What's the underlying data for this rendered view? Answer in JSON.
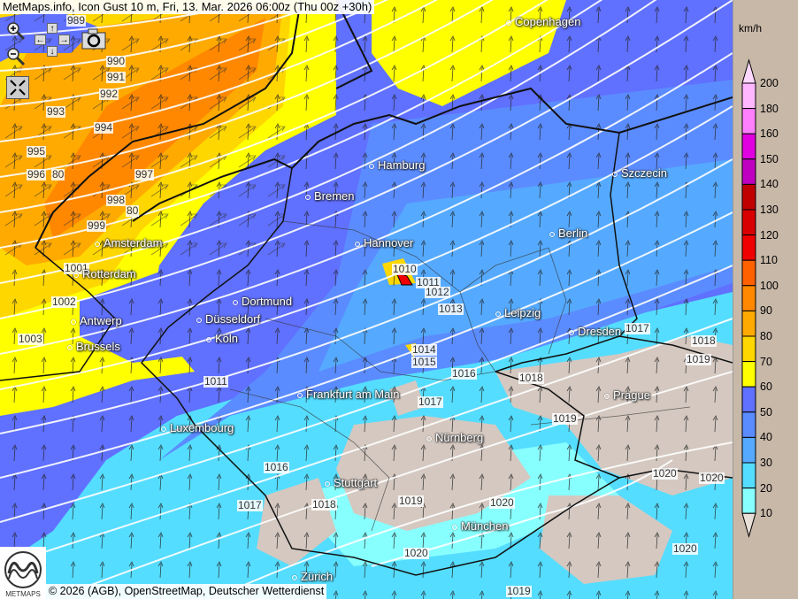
{
  "title": "MetMaps.info, Icon Gust 10 m, Fri, 13. Mar. 2026 06:00z (Thu 00z +30h)",
  "footer": {
    "copyright": "© 2026 (AGB), OpenStreetMap, Deutscher Wetterdienst",
    "logo_text": "METMAPS"
  },
  "controls": {
    "zoom_in": "zoom-in-icon",
    "zoom_out": "zoom-out-icon",
    "pan": [
      "arrow-up-icon",
      "arrow-left-icon",
      "arrow-right-icon",
      "arrow-down-icon"
    ],
    "screenshot": "camera-icon",
    "fullscreen": "fullscreen-icon"
  },
  "cities": [
    "Copenhagen",
    "Hamburg",
    "Szczecin",
    "Bremen",
    "Amsterdam",
    "Hannover",
    "Berlin",
    "Rotterdam",
    "Dortmund",
    "Düsseldorf",
    "Leipzig",
    "Antwerp",
    "Köln",
    "Brussels",
    "Dresden",
    "Frankfurt am Main",
    "Prague",
    "Luxembourg",
    "Nürnberg",
    "Stuttgart",
    "München",
    "Zürich"
  ],
  "isobar_labels": [
    "989",
    "990",
    "991",
    "992",
    "993",
    "994",
    "995",
    "996",
    "80",
    "997",
    "998",
    "80",
    "999",
    "1001",
    "1002",
    "1003",
    "1010",
    "1011",
    "1012",
    "1013",
    "1014",
    "1015",
    "1016",
    "1017",
    "1011",
    "1016",
    "1017",
    "1018",
    "1019",
    "1020",
    "1020",
    "1018",
    "1018",
    "1019",
    "1017",
    "1019",
    "1020",
    "1020",
    "1020",
    "1019"
  ],
  "legend": {
    "unit": "km/h",
    "levels": [
      "200",
      "180",
      "160",
      "150",
      "140",
      "130",
      "120",
      "110",
      "100",
      "90",
      "80",
      "70",
      "60",
      "50",
      "40",
      "30",
      "20",
      "10"
    ],
    "colors": [
      "#ffb8ff",
      "#ff80ff",
      "#e000e0",
      "#c000c0",
      "#c00000",
      "#d80000",
      "#f00000",
      "#ff6000",
      "#ff8800",
      "#ffaa00",
      "#ffd700",
      "#ffff00",
      "#6070ff",
      "#5b8cff",
      "#55aaff",
      "#55ddff",
      "#88ffff"
    ],
    "over_color": "#ffd8ff",
    "under_color": "#e8e0d8"
  }
}
